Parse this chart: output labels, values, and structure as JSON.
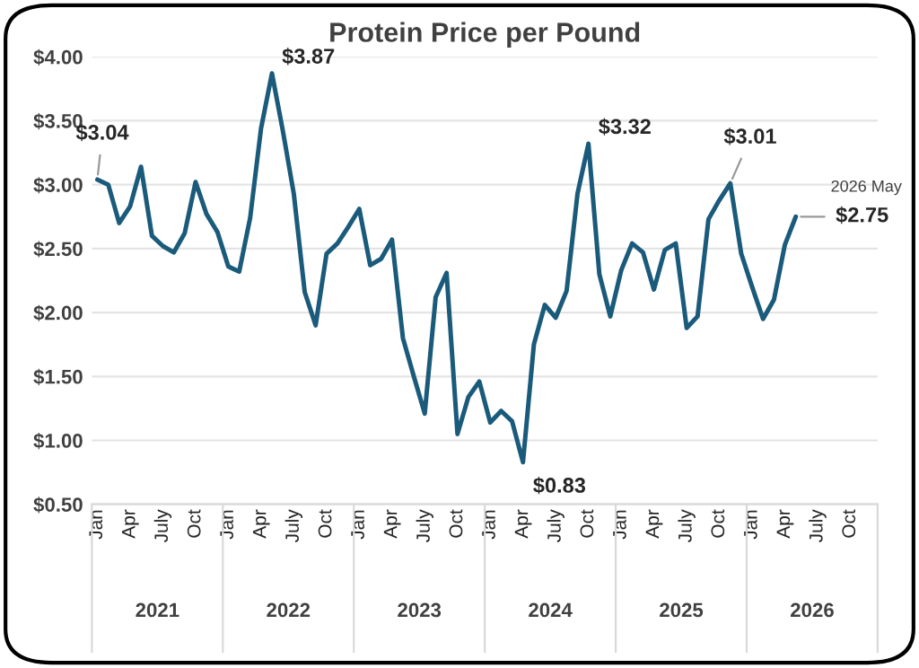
{
  "chart_data": {
    "type": "line",
    "title": "Protein Price per Pound",
    "categories": [
      "Jan",
      null,
      null,
      "Apr",
      null,
      null,
      "July",
      null,
      null,
      "Oct",
      null,
      null,
      "Jan",
      null,
      null,
      "Apr",
      null,
      null,
      "July",
      null,
      null,
      "Oct",
      null,
      null,
      "Jan",
      null,
      null,
      "Apr",
      null,
      null,
      "July",
      null,
      null,
      "Oct",
      null,
      null,
      "Jan",
      null,
      null,
      "Apr",
      null,
      null,
      "July",
      null,
      null,
      "Oct",
      null,
      null,
      "Jan",
      null,
      null,
      "Apr",
      null,
      null,
      "July",
      null,
      null,
      "Oct",
      null,
      null,
      "Jan",
      null,
      null,
      "Apr",
      null,
      null,
      "July",
      null,
      null,
      "Oct",
      null,
      null
    ],
    "series": [
      {
        "color": "#1a5a7a",
        "values": [
          3.04,
          3.0,
          2.7,
          2.83,
          3.14,
          2.6,
          2.52,
          2.47,
          2.62,
          3.02,
          2.77,
          2.63,
          2.36,
          2.32,
          2.74,
          3.44,
          3.87,
          3.42,
          2.93,
          2.16,
          1.9,
          2.46,
          2.54,
          2.67,
          2.81,
          2.37,
          2.42,
          2.57,
          1.8,
          1.5,
          1.21,
          2.12,
          2.31,
          1.05,
          1.34,
          1.46,
          1.14,
          1.23,
          1.15,
          0.83,
          1.75,
          2.06,
          1.96,
          2.17,
          2.93,
          3.32,
          2.3,
          1.97,
          2.33,
          2.54,
          2.47,
          2.18,
          2.49,
          2.54,
          1.88,
          1.97,
          2.73,
          2.88,
          3.01,
          2.46,
          2.2,
          1.95,
          2.1,
          2.53,
          2.75,
          null,
          null,
          null,
          null,
          null,
          null,
          null
        ],
        "value_labels": [
          "$3.04",
          null,
          null,
          null,
          null,
          null,
          null,
          null,
          null,
          null,
          null,
          null,
          null,
          null,
          null,
          null,
          "$3.87",
          null,
          null,
          null,
          null,
          null,
          null,
          null,
          null,
          null,
          null,
          null,
          null,
          null,
          null,
          null,
          null,
          null,
          null,
          null,
          null,
          null,
          null,
          "$0.83",
          null,
          null,
          null,
          null,
          null,
          "$3.32",
          null,
          null,
          null,
          null,
          null,
          null,
          null,
          null,
          null,
          null,
          null,
          null,
          "$3.01",
          null,
          null,
          null,
          null,
          null,
          "$2.75",
          null,
          null,
          null,
          null,
          null,
          null,
          null
        ]
      }
    ],
    "ylim": [
      0.5,
      4.0
    ],
    "yticks": [
      {
        "value": 0.5,
        "label": "$0.50"
      },
      {
        "value": 1.0,
        "label": "$1.00"
      },
      {
        "value": 1.5,
        "label": "$1.50"
      },
      {
        "value": 2.0,
        "label": "$2.00"
      },
      {
        "value": 2.5,
        "label": "$2.50"
      },
      {
        "value": 3.0,
        "label": "$3.00"
      },
      {
        "value": 3.5,
        "label": "$3.50"
      },
      {
        "value": 4.0,
        "label": "$4.00"
      }
    ],
    "grid": "y",
    "legend": false,
    "annotations": [
      "2026 May",
      "2021",
      "2022",
      "2023",
      "2024",
      "2025",
      "2026"
    ]
  }
}
